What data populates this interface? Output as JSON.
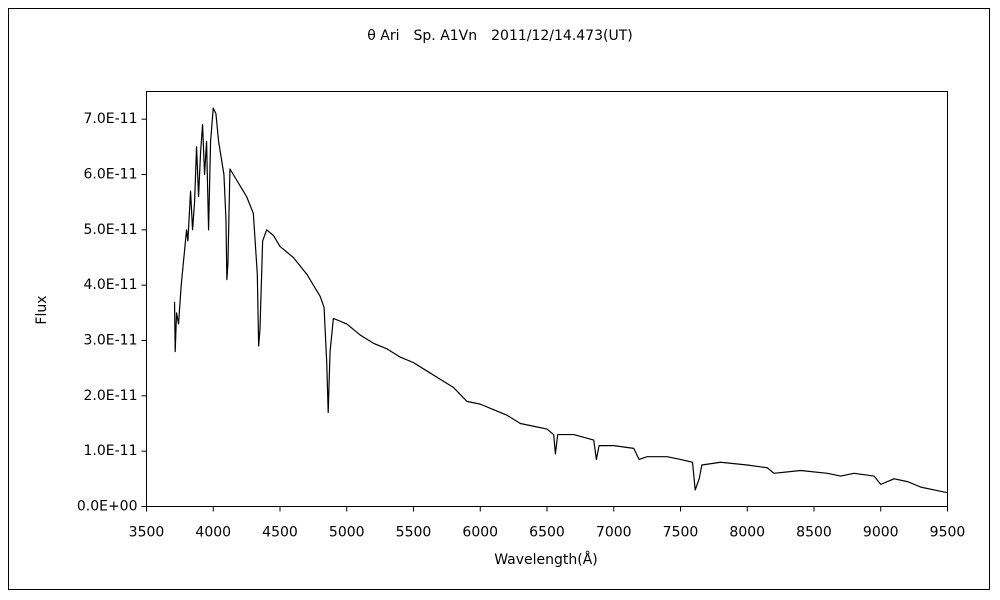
{
  "chart_data": {
    "type": "line",
    "title": "θ Ari　Sp. A1Vn　2011/12/14.473(UT)",
    "x_label": "Wavelength(Å)",
    "y_label": "Flux",
    "xlim": [
      3500,
      9500
    ],
    "xticks": [
      3500,
      4000,
      4500,
      5000,
      5500,
      6000,
      6500,
      7000,
      7500,
      8000,
      8500,
      9000,
      9500
    ],
    "ylim": [
      0,
      7.5e-11
    ],
    "yticks": [
      {
        "value": 0,
        "label": "0.0E+00"
      },
      {
        "value": 1e-11,
        "label": "1.0E-11"
      },
      {
        "value": 2e-11,
        "label": "2.0E-11"
      },
      {
        "value": 3e-11,
        "label": "3.0E-11"
      },
      {
        "value": 4e-11,
        "label": "4.0E-11"
      },
      {
        "value": 5e-11,
        "label": "5.0E-11"
      },
      {
        "value": 6e-11,
        "label": "6.0E-11"
      },
      {
        "value": 7e-11,
        "label": "7.0E-11"
      }
    ],
    "grid": false,
    "series": [
      {
        "color": "#000000",
        "x": [
          3710,
          3715,
          3725,
          3740,
          3760,
          3780,
          3800,
          3810,
          3830,
          3845,
          3860,
          3875,
          3890,
          3905,
          3920,
          3935,
          3950,
          3965,
          3980,
          4000,
          4020,
          4040,
          4060,
          4080,
          4095,
          4102,
          4110,
          4125,
          4150,
          4200,
          4250,
          4300,
          4330,
          4340,
          4350,
          4370,
          4400,
          4450,
          4500,
          4600,
          4700,
          4800,
          4830,
          4850,
          4861,
          4875,
          4900,
          5000,
          5100,
          5200,
          5300,
          5400,
          5500,
          5600,
          5700,
          5800,
          5900,
          6000,
          6100,
          6200,
          6300,
          6400,
          6500,
          6550,
          6563,
          6580,
          6700,
          6850,
          6870,
          6890,
          7000,
          7150,
          7190,
          7250,
          7400,
          7500,
          7590,
          7610,
          7640,
          7660,
          7800,
          8000,
          8150,
          8200,
          8400,
          8600,
          8700,
          8800,
          8950,
          9000,
          9100,
          9200,
          9300,
          9400,
          9500
        ],
        "values": [
          3.7e-11,
          2.8e-11,
          3.5e-11,
          3.3e-11,
          4e-11,
          4.5e-11,
          5e-11,
          4.8e-11,
          5.7e-11,
          5e-11,
          5.5e-11,
          6.5e-11,
          5.6e-11,
          6.4e-11,
          6.9e-11,
          6e-11,
          6.6e-11,
          5e-11,
          6.6e-11,
          7.2e-11,
          7.1e-11,
          6.6e-11,
          6.3e-11,
          6e-11,
          5.2e-11,
          4.1e-11,
          4.4e-11,
          6.1e-11,
          6e-11,
          5.8e-11,
          5.6e-11,
          5.3e-11,
          4.2e-11,
          2.9e-11,
          3.2e-11,
          4.8e-11,
          5e-11,
          4.9e-11,
          4.7e-11,
          4.5e-11,
          4.2e-11,
          3.8e-11,
          3.6e-11,
          2.6e-11,
          1.7e-11,
          2.8e-11,
          3.4e-11,
          3.3e-11,
          3.1e-11,
          2.95e-11,
          2.85e-11,
          2.7e-11,
          2.6e-11,
          2.45e-11,
          2.3e-11,
          2.15e-11,
          1.9e-11,
          1.85e-11,
          1.75e-11,
          1.65e-11,
          1.5e-11,
          1.45e-11,
          1.4e-11,
          1.3e-11,
          9.5e-12,
          1.3e-11,
          1.3e-11,
          1.2e-11,
          8.5e-12,
          1.1e-11,
          1.1e-11,
          1.05e-11,
          8.5e-12,
          9e-12,
          9e-12,
          8.5e-12,
          8e-12,
          3e-12,
          5e-12,
          7.5e-12,
          8e-12,
          7.5e-12,
          7e-12,
          6e-12,
          6.5e-12,
          6e-12,
          5.5e-12,
          6e-12,
          5.5e-12,
          4e-12,
          5e-12,
          4.5e-12,
          3.5e-12,
          3e-12,
          2.5e-12
        ]
      }
    ]
  }
}
